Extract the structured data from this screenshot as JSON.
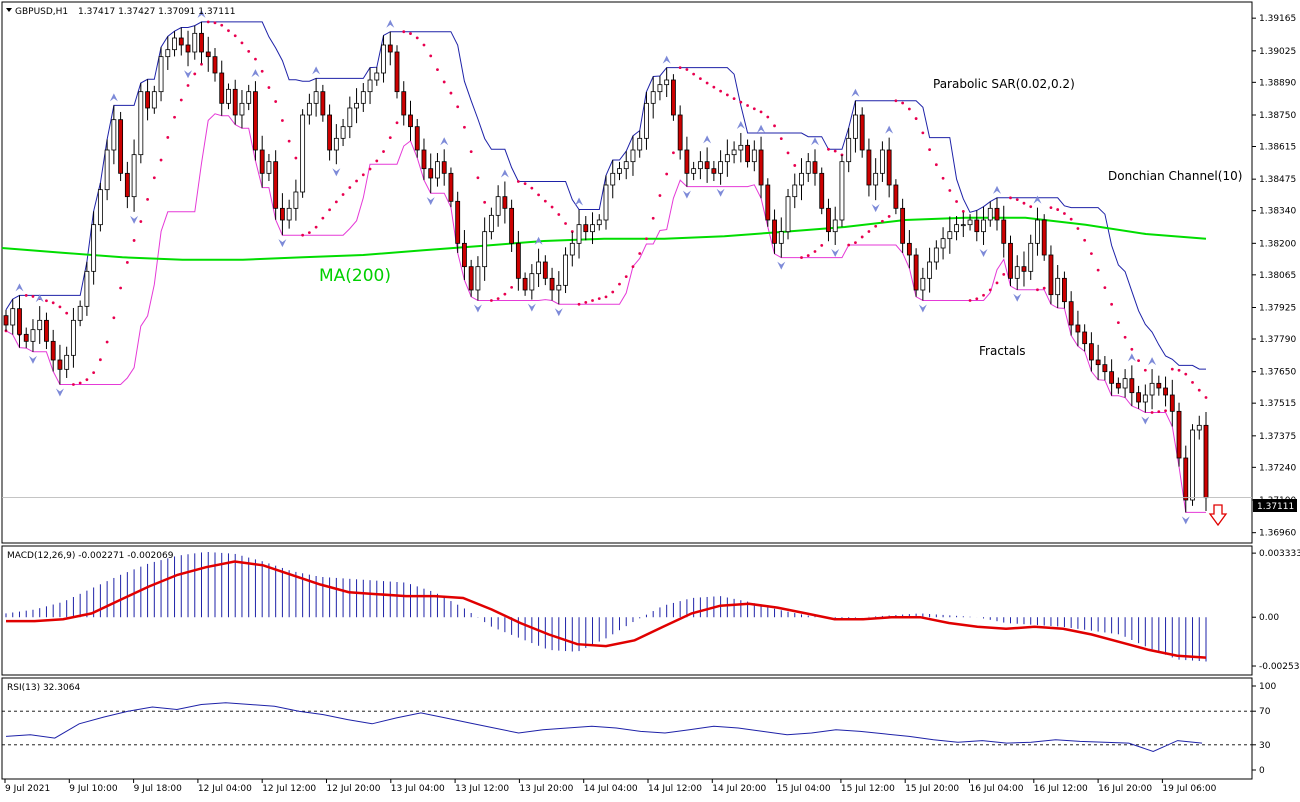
{
  "chart_data": [
    {
      "type": "candlestick",
      "title": "GBPUSD,H1",
      "header_values": [
        "1.37417",
        "1.37427",
        "1.37091",
        "1.37111"
      ],
      "last_price_label": "1.37111",
      "y_ticks": [
        "1.39165",
        "1.39025",
        "1.38890",
        "1.38750",
        "1.38615",
        "1.38475",
        "1.38340",
        "1.38200",
        "1.38065",
        "1.37925",
        "1.37790",
        "1.37650",
        "1.37515",
        "1.37375",
        "1.37240",
        "1.37100",
        "1.36960"
      ],
      "ylim": [
        1.3692,
        1.3923
      ],
      "x_tick_labels": [
        "9 Jul 2021",
        "9 Jul 10:00",
        "9 Jul 18:00",
        "12 Jul 04:00",
        "12 Jul 12:00",
        "12 Jul 20:00",
        "13 Jul 04:00",
        "13 Jul 12:00",
        "13 Jul 20:00",
        "14 Jul 04:00",
        "14 Jul 12:00",
        "14 Jul 20:00",
        "15 Jul 04:00",
        "15 Jul 12:00",
        "15 Jul 20:00",
        "16 Jul 04:00",
        "16 Jul 12:00",
        "16 Jul 20:00",
        "19 Jul 06:00"
      ],
      "closes": [
        1.3785,
        1.3792,
        1.3781,
        1.3778,
        1.3783,
        1.3787,
        1.3778,
        1.377,
        1.3766,
        1.3772,
        1.3787,
        1.3793,
        1.3808,
        1.3828,
        1.3843,
        1.386,
        1.3873,
        1.385,
        1.384,
        1.3858,
        1.3885,
        1.3878,
        1.3885,
        1.39,
        1.3903,
        1.3908,
        1.3905,
        1.3902,
        1.391,
        1.3902,
        1.39,
        1.3893,
        1.388,
        1.3886,
        1.3875,
        1.388,
        1.3885,
        1.386,
        1.385,
        1.3855,
        1.3835,
        1.383,
        1.3835,
        1.3842,
        1.3875,
        1.388,
        1.3885,
        1.3875,
        1.386,
        1.3865,
        1.387,
        1.3878,
        1.388,
        1.3885,
        1.389,
        1.3893,
        1.3905,
        1.3902,
        1.3885,
        1.3875,
        1.387,
        1.386,
        1.3852,
        1.3848,
        1.3855,
        1.385,
        1.3838,
        1.382,
        1.381,
        1.38,
        1.381,
        1.3825,
        1.3832,
        1.384,
        1.3835,
        1.382,
        1.3805,
        1.38,
        1.3807,
        1.3812,
        1.3805,
        1.38,
        1.3802,
        1.3815,
        1.382,
        1.3828,
        1.3825,
        1.3828,
        1.383,
        1.3845,
        1.385,
        1.3852,
        1.3855,
        1.386,
        1.3865,
        1.388,
        1.3885,
        1.3888,
        1.389,
        1.3875,
        1.386,
        1.385,
        1.3852,
        1.3855,
        1.3852,
        1.385,
        1.3855,
        1.3858,
        1.386,
        1.3862,
        1.3855,
        1.386,
        1.3845,
        1.383,
        1.382,
        1.3825,
        1.384,
        1.3845,
        1.385,
        1.3855,
        1.385,
        1.3835,
        1.3825,
        1.383,
        1.3855,
        1.3865,
        1.3875,
        1.386,
        1.3845,
        1.385,
        1.386,
        1.3845,
        1.3835,
        1.382,
        1.3815,
        1.38,
        1.3805,
        1.3812,
        1.3818,
        1.3822,
        1.3825,
        1.3828,
        1.3828,
        1.383,
        1.3825,
        1.383,
        1.3835,
        1.383,
        1.382,
        1.3805,
        1.381,
        1.3808,
        1.382,
        1.383,
        1.3815,
        1.3798,
        1.3805,
        1.3795,
        1.3785,
        1.3782,
        1.3777,
        1.377,
        1.3768,
        1.3765,
        1.376,
        1.3758,
        1.3762,
        1.3756,
        1.3752,
        1.3755,
        1.376,
        1.3758,
        1.3755,
        1.3748,
        1.3728,
        1.371,
        1.374,
        1.3742,
        1.3711
      ],
      "ma_label": "MA(200)",
      "ma_color": "#00dd00",
      "ma_values": [
        1.3818,
        1.3816,
        1.3814,
        1.3813,
        1.3813,
        1.3814,
        1.3815,
        1.3817,
        1.3819,
        1.3821,
        1.3822,
        1.3822,
        1.3823,
        1.3825,
        1.3827,
        1.383,
        1.3831,
        1.3831,
        1.3828,
        1.3824,
        1.3822
      ],
      "sar_label": "Parabolic SAR(0.02,0.2)",
      "sar_color": "#e8004f",
      "donchian_label": "Donchian Channel(10)",
      "donchian_upper_color": "#1e22a8",
      "donchian_lower_color": "#e53ad7",
      "fractals_label": "Fractals"
    },
    {
      "type": "histogram+line",
      "title": "MACD(12,26,9) -0.002271 -0.002069",
      "y_ticks": [
        "0.003333",
        "0.00",
        "-0.002537"
      ],
      "ylim": [
        -0.0029,
        0.0036
      ],
      "signal_color": "#e00000",
      "histogram_color": "#1e22a8",
      "histogram": [
        0.0002,
        0.0004,
        0.0008,
        0.0015,
        0.0022,
        0.0028,
        0.0032,
        0.0034,
        0.0033,
        0.0029,
        0.0024,
        0.0021,
        0.002,
        0.0019,
        0.0018,
        0.0013,
        0.0005,
        -0.0005,
        -0.0011,
        -0.0017,
        -0.0018,
        -0.0011,
        -0.0002,
        0.0006,
        0.001,
        0.0011,
        0.0008,
        0.0004,
        0.0001,
        -0.0001,
        0.0,
        0.0001,
        0.0002,
        0.0001,
        0.0,
        -0.0003,
        -0.0004,
        -0.0005,
        -0.0007,
        -0.0009,
        -0.0016,
        -0.0022,
        -0.0023
      ],
      "signal": [
        -0.0002,
        -0.0002,
        -0.0001,
        0.0002,
        0.0009,
        0.0016,
        0.0022,
        0.0026,
        0.0029,
        0.0027,
        0.0022,
        0.0017,
        0.0013,
        0.0012,
        0.0011,
        0.0011,
        0.001,
        0.0004,
        -0.0003,
        -0.0009,
        -0.0014,
        -0.0015,
        -0.0012,
        -0.0005,
        0.0002,
        0.0006,
        0.0007,
        0.0005,
        0.0002,
        -0.0001,
        -0.0001,
        0.0,
        0.0,
        -0.0003,
        -0.0005,
        -0.0006,
        -0.0005,
        -0.0006,
        -0.0009,
        -0.0013,
        -0.0017,
        -0.002,
        -0.0021
      ]
    },
    {
      "type": "line",
      "title": "RSI(13) 32.3064",
      "y_ticks": [
        "100",
        "70",
        "30",
        "0"
      ],
      "levels": [
        70,
        30
      ],
      "ylim": [
        0,
        100
      ],
      "line_color": "#1e22a8",
      "values": [
        40,
        42,
        38,
        55,
        63,
        70,
        75,
        72,
        78,
        80,
        78,
        76,
        70,
        66,
        60,
        55,
        62,
        68,
        62,
        56,
        50,
        44,
        48,
        50,
        52,
        50,
        46,
        44,
        48,
        52,
        50,
        46,
        42,
        44,
        48,
        46,
        43,
        40,
        36,
        33,
        35,
        32,
        33,
        36,
        34,
        33,
        32,
        22,
        35,
        32
      ]
    }
  ]
}
